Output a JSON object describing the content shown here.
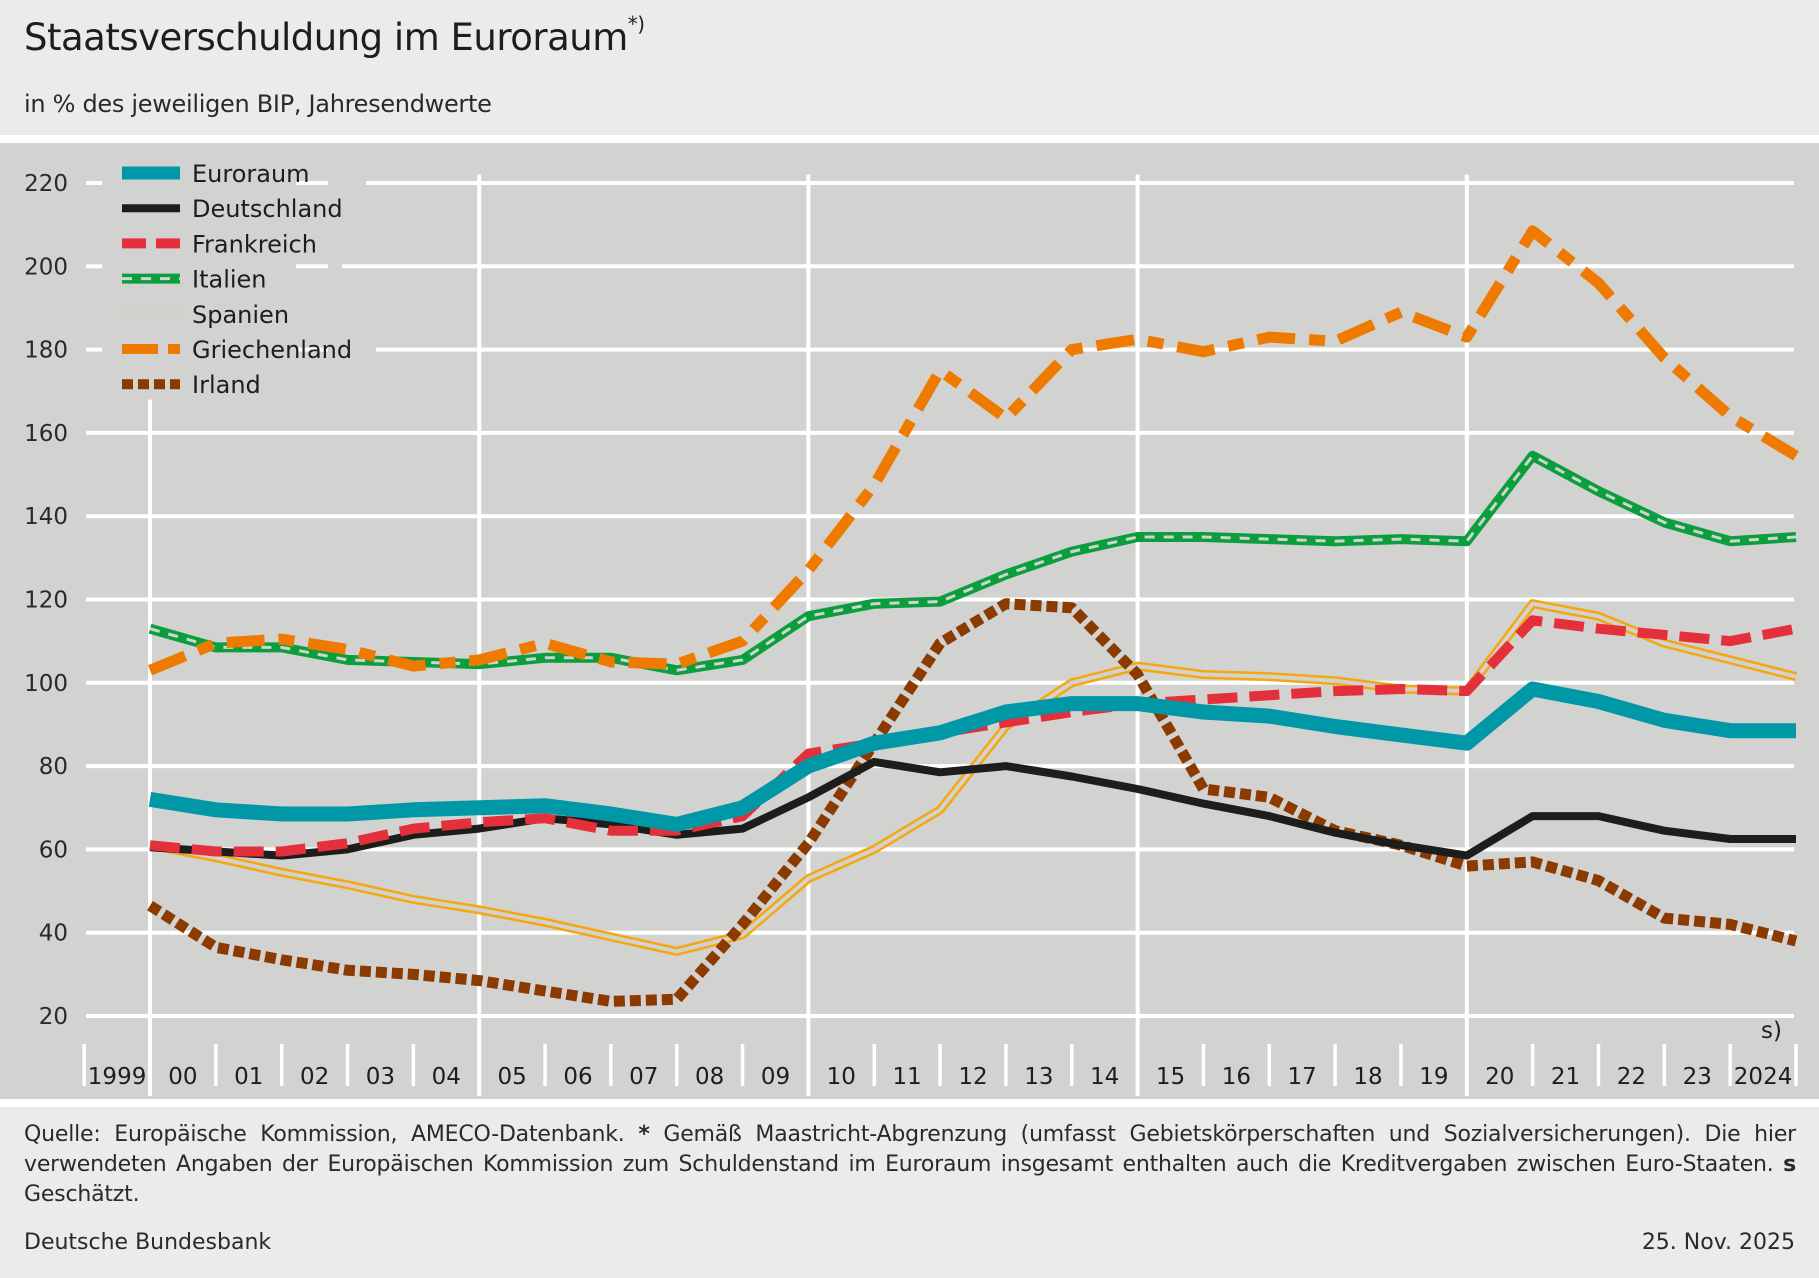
{
  "header": {
    "title": "Staatsverschuldung im Euroraum",
    "title_footnote": "*)",
    "subtitle": "in % des jeweiligen BIP, Jahresendwerte"
  },
  "footer": {
    "note_part1": "Quelle: Europäische Kommission, AMECO-Datenbank. ",
    "note_star": "*",
    "note_part2": " Gemäß Maastricht-Abgrenzung (umfasst Gebietskörperschaften und Sozialversicherungen). Die hier verwendeten Angaben der Europäischen Kommission zum Schuldenstand im Euroraum insgesamt enthalten auch die Kreditvergaben zwischen Euro-Staaten. ",
    "note_s": "s",
    "note_part3": " Geschätzt.",
    "source": "Deutsche Bundesbank",
    "date": "25. Nov. 2025"
  },
  "colors": {
    "euroraum": "#0097a7",
    "deutschland": "#1d1d1b",
    "frankreich": "#e3303a",
    "italien": "#0a9e3c",
    "spanien": "#f4a70f",
    "griechenland": "#ef7a00",
    "irland": "#8b3a00",
    "plot_bg": "#d2d2d1",
    "grid": "#ffffff"
  },
  "chart_data": {
    "type": "line",
    "title": "Staatsverschuldung im Euroraum",
    "subtitle": "in % des jeweiligen BIP, Jahresendwerte",
    "xlabel": "",
    "ylabel": "",
    "ylim": [
      20,
      220
    ],
    "yticks": [
      20,
      40,
      60,
      80,
      100,
      120,
      140,
      160,
      180,
      200,
      220
    ],
    "grid": true,
    "legend_position": "top-left",
    "estimate_marker": "s)",
    "x": [
      1999,
      2000,
      2001,
      2002,
      2003,
      2004,
      2005,
      2006,
      2007,
      2008,
      2009,
      2010,
      2011,
      2012,
      2013,
      2014,
      2015,
      2016,
      2017,
      2018,
      2019,
      2020,
      2021,
      2022,
      2023,
      2024
    ],
    "xtick_labels": [
      "1999",
      "00",
      "01",
      "02",
      "03",
      "04",
      "05",
      "06",
      "07",
      "08",
      "09",
      "10",
      "11",
      "12",
      "13",
      "14",
      "15",
      "16",
      "17",
      "18",
      "19",
      "20",
      "21",
      "22",
      "23",
      "2024"
    ],
    "series": [
      {
        "key": "euroraum",
        "name": "Euroraum",
        "style": "thick-solid",
        "values": [
          72,
          69.5,
          68.5,
          68.5,
          69.5,
          70,
          70.5,
          68.5,
          66,
          70,
          80,
          85.5,
          88,
          93,
          95,
          95,
          93,
          92,
          89.5,
          87.5,
          85.5,
          98.5,
          95.5,
          91,
          88.5,
          88.5
        ]
      },
      {
        "key": "deutschland",
        "name": "Deutschland",
        "style": "solid",
        "values": [
          60.5,
          59.5,
          58.5,
          60,
          63.5,
          65,
          67.5,
          66,
          63.5,
          65,
          72.5,
          81,
          78.5,
          80,
          77.5,
          74.5,
          71,
          68,
          64,
          61,
          58.5,
          68,
          68,
          64.5,
          62.5,
          62.5
        ]
      },
      {
        "key": "frankreich",
        "name": "Frankreich",
        "style": "dashed",
        "values": [
          61,
          59.5,
          59.5,
          61.5,
          65,
          66.5,
          67.5,
          64.5,
          64.5,
          68,
          83,
          85.5,
          88,
          90.5,
          93,
          95,
          96,
          97,
          98,
          98.5,
          98,
          115,
          113,
          111.5,
          110,
          113
        ]
      },
      {
        "key": "italien",
        "name": "Italien",
        "style": "green-with-white-dots",
        "values": [
          113,
          108.5,
          108.5,
          105.5,
          105,
          104.5,
          106,
          106,
          103,
          105.5,
          116,
          119,
          119.5,
          126,
          131.5,
          135,
          135,
          134.5,
          134,
          134.5,
          134,
          154.5,
          146,
          138.5,
          134,
          135
        ]
      },
      {
        "key": "spanien",
        "name": "Spanien",
        "style": "double-line",
        "values": [
          61,
          58,
          54.5,
          51.5,
          48,
          45.5,
          42.5,
          39,
          35.5,
          39.5,
          53,
          60,
          69.5,
          89.5,
          100,
          104,
          102,
          101.5,
          100.5,
          98.5,
          98,
          119,
          116,
          109.5,
          105.5,
          101.5
        ]
      },
      {
        "key": "griechenland",
        "name": "Griechenland",
        "style": "long-dash",
        "values": [
          103,
          109.5,
          110.5,
          108,
          104,
          105.5,
          109.5,
          105,
          104.5,
          110,
          127,
          147.5,
          175,
          163.5,
          180,
          182.5,
          179.5,
          183,
          182,
          189,
          183,
          208.5,
          196,
          178,
          164,
          154.5
        ]
      },
      {
        "key": "irland",
        "name": "Irland",
        "style": "square-dots",
        "values": [
          46.5,
          36.5,
          33.5,
          31,
          30,
          28.5,
          26,
          23.5,
          24,
          42,
          61.5,
          85.5,
          109.5,
          119,
          118,
          102,
          74.5,
          72.5,
          64.5,
          61,
          56,
          57,
          52.5,
          43.5,
          42,
          38
        ]
      }
    ]
  }
}
